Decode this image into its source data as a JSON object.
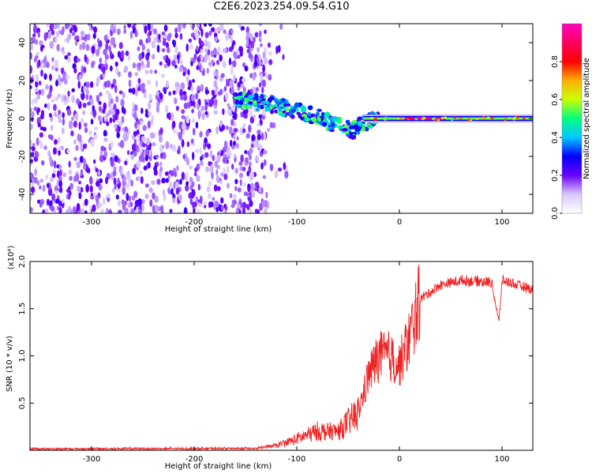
{
  "title": "C2E6.2023.254.09.54.G10",
  "chart_data": [
    {
      "type": "heatmap",
      "title": "C2E6.2023.254.09.54.G10",
      "xlabel": "Height of straight line (km)",
      "ylabel": "Frequency (Hz)",
      "xlim": [
        -360,
        130
      ],
      "ylim": [
        -50,
        50
      ],
      "x_ticks": [
        -300,
        -200,
        -100,
        0,
        100
      ],
      "y_ticks": [
        -40,
        -20,
        0,
        20,
        40
      ],
      "colorbar": {
        "label": "Normalized spectral amplitude",
        "range": [
          0,
          1
        ],
        "ticks": [
          0.0,
          0.2,
          0.4,
          0.6,
          0.8
        ],
        "colors": [
          "#ffffff",
          "#d8c8ff",
          "#6a00ff",
          "#0000ff",
          "#00c8ff",
          "#00ff80",
          "#c8ff00",
          "#ffb000",
          "#ff0000",
          "#ff0060",
          "#ff00c0"
        ]
      },
      "regions": [
        {
          "name": "noise",
          "x_range": [
            -360,
            -130
          ],
          "y_range": [
            -50,
            50
          ],
          "amplitude": 0.15
        },
        {
          "name": "descending-trace",
          "points": [
            [
              -160,
              10
            ],
            [
              -130,
              8
            ],
            [
              -100,
              4
            ],
            [
              -80,
              1
            ],
            [
              -60,
              -4
            ],
            [
              -45,
              -6
            ],
            [
              -35,
              -2
            ],
            [
              -20,
              0
            ]
          ],
          "amplitude": 0.5
        },
        {
          "name": "steady-line",
          "x_range": [
            -35,
            130
          ],
          "y_value": 0,
          "amplitude": 0.95
        }
      ],
      "grid": false
    },
    {
      "type": "line",
      "xlabel": "Height of straight line (km)",
      "ylabel": "SNR (10 * v/v)",
      "y_multiplier_label": "(x10⁴)",
      "xlim": [
        -360,
        130
      ],
      "ylim": [
        0,
        20000
      ],
      "x_ticks": [
        -300,
        -200,
        -100,
        0,
        100
      ],
      "y_tick_labels": [
        "0.5",
        "1.0",
        "1.5",
        "2.0"
      ],
      "y_tick_values": [
        5000,
        10000,
        15000,
        20000
      ],
      "color": "#ee2222",
      "grid": false,
      "key_points": [
        {
          "x": -360,
          "y": 150
        },
        {
          "x": -140,
          "y": 200
        },
        {
          "x": -120,
          "y": 500
        },
        {
          "x": -100,
          "y": 1200
        },
        {
          "x": -80,
          "y": 2000
        },
        {
          "x": -60,
          "y": 2000
        },
        {
          "x": -40,
          "y": 4000
        },
        {
          "x": -30,
          "y": 8000
        },
        {
          "x": -20,
          "y": 10000
        },
        {
          "x": -10,
          "y": 10000
        },
        {
          "x": 0,
          "y": 9000
        },
        {
          "x": 10,
          "y": 12000
        },
        {
          "x": 20,
          "y": 16000
        },
        {
          "x": 40,
          "y": 17500
        },
        {
          "x": 60,
          "y": 18000
        },
        {
          "x": 90,
          "y": 17800
        },
        {
          "x": 97,
          "y": 13500
        },
        {
          "x": 100,
          "y": 18000
        },
        {
          "x": 130,
          "y": 17000
        }
      ]
    }
  ]
}
